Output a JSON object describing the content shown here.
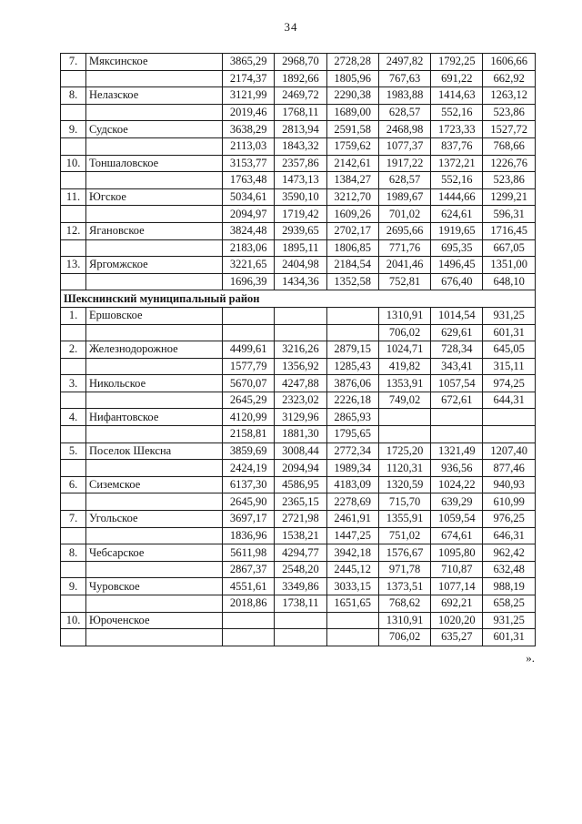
{
  "page_number": "34",
  "closing_mark": "».",
  "table": {
    "sections": [
      {
        "header": "",
        "rows": [
          {
            "num": "7.",
            "name": "Мяксинское",
            "lines": [
              [
                "3865,29",
                "2968,70",
                "2728,28",
                "2497,82",
                "1792,25",
                "1606,66"
              ],
              [
                "2174,37",
                "1892,66",
                "1805,96",
                "767,63",
                "691,22",
                "662,92"
              ]
            ]
          },
          {
            "num": "8.",
            "name": "Нелазское",
            "lines": [
              [
                "3121,99",
                "2469,72",
                "2290,38",
                "1983,88",
                "1414,63",
                "1263,12"
              ],
              [
                "2019,46",
                "1768,11",
                "1689,00",
                "628,57",
                "552,16",
                "523,86"
              ]
            ]
          },
          {
            "num": "9.",
            "name": "Судское",
            "lines": [
              [
                "3638,29",
                "2813,94",
                "2591,58",
                "2468,98",
                "1723,33",
                "1527,72"
              ],
              [
                "2113,03",
                "1843,32",
                "1759,62",
                "1077,37",
                "837,76",
                "768,66"
              ]
            ]
          },
          {
            "num": "10.",
            "name": "Тоншаловское",
            "lines": [
              [
                "3153,77",
                "2357,86",
                "2142,61",
                "1917,22",
                "1372,21",
                "1226,76"
              ],
              [
                "1763,48",
                "1473,13",
                "1384,27",
                "628,57",
                "552,16",
                "523,86"
              ]
            ]
          },
          {
            "num": "11.",
            "name": "Югское",
            "lines": [
              [
                "5034,61",
                "3590,10",
                "3212,70",
                "1989,67",
                "1444,66",
                "1299,21"
              ],
              [
                "2094,97",
                "1719,42",
                "1609,26",
                "701,02",
                "624,61",
                "596,31"
              ]
            ]
          },
          {
            "num": "12.",
            "name": "Ягановское",
            "lines": [
              [
                "3824,48",
                "2939,65",
                "2702,17",
                "2695,66",
                "1919,65",
                "1716,45"
              ],
              [
                "2183,06",
                "1895,11",
                "1806,85",
                "771,76",
                "695,35",
                "667,05"
              ]
            ]
          },
          {
            "num": "13.",
            "name": "Яргомжское",
            "lines": [
              [
                "3221,65",
                "2404,98",
                "2184,54",
                "2041,46",
                "1496,45",
                "1351,00"
              ],
              [
                "1696,39",
                "1434,36",
                "1352,58",
                "752,81",
                "676,40",
                "648,10"
              ]
            ]
          }
        ]
      },
      {
        "header": "Шекснинский муниципальный район",
        "rows": [
          {
            "num": "1.",
            "name": "Ершовское",
            "lines": [
              [
                "",
                "",
                "",
                "1310,91",
                "1014,54",
                "931,25"
              ],
              [
                "",
                "",
                "",
                "706,02",
                "629,61",
                "601,31"
              ]
            ]
          },
          {
            "num": "2.",
            "name": "Железнодорожное",
            "lines": [
              [
                "4499,61",
                "3216,26",
                "2879,15",
                "1024,71",
                "728,34",
                "645,05"
              ],
              [
                "1577,79",
                "1356,92",
                "1285,43",
                "419,82",
                "343,41",
                "315,11"
              ]
            ]
          },
          {
            "num": "3.",
            "name": "Никольское",
            "lines": [
              [
                "5670,07",
                "4247,88",
                "3876,06",
                "1353,91",
                "1057,54",
                "974,25"
              ],
              [
                "2645,29",
                "2323,02",
                "2226,18",
                "749,02",
                "672,61",
                "644,31"
              ]
            ]
          },
          {
            "num": "4.",
            "name": "Нифантовское",
            "lines": [
              [
                "4120,99",
                "3129,96",
                "2865,93",
                "",
                "",
                ""
              ],
              [
                "2158,81",
                "1881,30",
                "1795,65",
                "",
                "",
                ""
              ]
            ]
          },
          {
            "num": "5.",
            "name": "Поселок Шексна",
            "lines": [
              [
                "3859,69",
                "3008,44",
                "2772,34",
                "1725,20",
                "1321,49",
                "1207,40"
              ],
              [
                "2424,19",
                "2094,94",
                "1989,34",
                "1120,31",
                "936,56",
                "877,46"
              ]
            ]
          },
          {
            "num": "6.",
            "name": "Сиземское",
            "lines": [
              [
                "6137,30",
                "4586,95",
                "4183,09",
                "1320,59",
                "1024,22",
                "940,93"
              ],
              [
                "2645,90",
                "2365,15",
                "2278,69",
                "715,70",
                "639,29",
                "610,99"
              ]
            ]
          },
          {
            "num": "7.",
            "name": "Угольское",
            "lines": [
              [
                "3697,17",
                "2721,98",
                "2461,91",
                "1355,91",
                "1059,54",
                "976,25"
              ],
              [
                "1836,96",
                "1538,21",
                "1447,25",
                "751,02",
                "674,61",
                "646,31"
              ]
            ]
          },
          {
            "num": "8.",
            "name": "Чебсарское",
            "lines": [
              [
                "5611,98",
                "4294,77",
                "3942,18",
                "1576,67",
                "1095,80",
                "962,42"
              ],
              [
                "2867,37",
                "2548,20",
                "2445,12",
                "971,78",
                "710,87",
                "632,48"
              ]
            ]
          },
          {
            "num": "9.",
            "name": "Чуровское",
            "lines": [
              [
                "4551,61",
                "3349,86",
                "3033,15",
                "1373,51",
                "1077,14",
                "988,19"
              ],
              [
                "2018,86",
                "1738,11",
                "1651,65",
                "768,62",
                "692,21",
                "658,25"
              ]
            ]
          },
          {
            "num": "10.",
            "name": "Юроченское",
            "lines": [
              [
                "",
                "",
                "",
                "1310,91",
                "1020,20",
                "931,25"
              ],
              [
                "",
                "",
                "",
                "706,02",
                "635,27",
                "601,31"
              ]
            ]
          }
        ]
      }
    ]
  }
}
